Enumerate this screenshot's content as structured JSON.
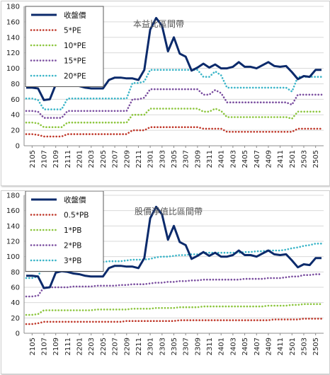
{
  "chart_data": [
    {
      "type": "line",
      "title": "本益比區間帶",
      "ylim": [
        0,
        180
      ],
      "yticks": [
        0,
        20,
        40,
        60,
        80,
        100,
        120,
        140,
        160,
        180
      ],
      "xtick_labels": [
        "2105",
        "2107",
        "2109",
        "2111",
        "2201",
        "2203",
        "2205",
        "2207",
        "2209",
        "2211",
        "2301",
        "2303",
        "2305",
        "2307",
        "2309",
        "2311",
        "2401",
        "2403",
        "2405",
        "2407",
        "2409",
        "2411",
        "2501",
        "2503",
        "2505"
      ],
      "x_start": "2104",
      "grid": "horizontal",
      "legend_position": "top-left",
      "series": [
        {
          "name": "收盤價",
          "color": "#0b2a6b",
          "style": "solid",
          "values": [
            75,
            75,
            74,
            59,
            60,
            79,
            81,
            80,
            78,
            77,
            75,
            74,
            74,
            74,
            85,
            88,
            88,
            87,
            87,
            85,
            98,
            150,
            165,
            155,
            122,
            140,
            119,
            115,
            97,
            101,
            106,
            101,
            105,
            100,
            100,
            102,
            108,
            102,
            102,
            100,
            104,
            108,
            103,
            102,
            103,
            95,
            86,
            90,
            89,
            98,
            98
          ]
        },
        {
          "name": "5*PE",
          "color": "#c0392b",
          "style": "dotted",
          "values": [
            15,
            15,
            14,
            12,
            12,
            12,
            12,
            15,
            15,
            15,
            15,
            15,
            15,
            15,
            15,
            15,
            15,
            15,
            20,
            20,
            20,
            24,
            24,
            24,
            24,
            24,
            24,
            24,
            24,
            24,
            22,
            22,
            22,
            22,
            18,
            18,
            18,
            18,
            18,
            18,
            18,
            18,
            18,
            18,
            18,
            18,
            22,
            22,
            22,
            22,
            22
          ]
        },
        {
          "name": "10*PE",
          "color": "#8dc63f",
          "style": "dotted",
          "values": [
            30,
            30,
            29,
            24,
            24,
            24,
            24,
            30,
            30,
            30,
            30,
            30,
            30,
            30,
            30,
            30,
            30,
            30,
            40,
            40,
            40,
            48,
            48,
            48,
            48,
            48,
            48,
            48,
            48,
            48,
            44,
            44,
            48,
            45,
            37,
            37,
            37,
            37,
            37,
            37,
            37,
            37,
            37,
            37,
            37,
            35,
            44,
            44,
            44,
            44,
            44
          ]
        },
        {
          "name": "15*PE",
          "color": "#7b4fa0",
          "style": "dotted",
          "values": [
            45,
            45,
            44,
            36,
            36,
            36,
            36,
            45,
            45,
            45,
            45,
            45,
            45,
            45,
            45,
            45,
            45,
            45,
            60,
            60,
            62,
            73,
            73,
            73,
            73,
            73,
            73,
            73,
            73,
            73,
            66,
            66,
            72,
            68,
            56,
            56,
            56,
            56,
            56,
            56,
            56,
            56,
            56,
            56,
            56,
            53,
            66,
            66,
            66,
            66,
            66
          ]
        },
        {
          "name": "20*PE",
          "color": "#3bb5c8",
          "style": "dotted",
          "values": [
            61,
            61,
            59,
            47,
            47,
            47,
            47,
            61,
            61,
            61,
            61,
            61,
            61,
            61,
            61,
            61,
            61,
            61,
            81,
            81,
            83,
            98,
            98,
            98,
            98,
            98,
            98,
            98,
            98,
            98,
            89,
            89,
            96,
            91,
            75,
            75,
            75,
            75,
            75,
            75,
            75,
            75,
            75,
            75,
            75,
            70,
            89,
            89,
            89,
            89,
            89
          ]
        }
      ]
    },
    {
      "type": "line",
      "title": "股價淨值比區間帶",
      "ylim": [
        0,
        180
      ],
      "yticks": [
        0,
        20,
        40,
        60,
        80,
        100,
        120,
        140,
        160,
        180
      ],
      "xtick_labels": [
        "2105",
        "2107",
        "2109",
        "2111",
        "2201",
        "2203",
        "2205",
        "2207",
        "2209",
        "2211",
        "2301",
        "2303",
        "2305",
        "2307",
        "2309",
        "2311",
        "2401",
        "2403",
        "2405",
        "2407",
        "2409",
        "2411",
        "2501",
        "2503",
        "2505"
      ],
      "x_start": "2104",
      "grid": "horizontal",
      "legend_position": "top-left",
      "series": [
        {
          "name": "收盤價",
          "color": "#0b2a6b",
          "style": "solid",
          "values": [
            75,
            75,
            74,
            59,
            60,
            79,
            81,
            80,
            78,
            77,
            75,
            74,
            74,
            74,
            85,
            88,
            88,
            87,
            87,
            85,
            98,
            150,
            165,
            155,
            122,
            140,
            119,
            115,
            97,
            101,
            106,
            101,
            105,
            100,
            100,
            102,
            108,
            102,
            102,
            100,
            104,
            108,
            103,
            102,
            103,
            95,
            86,
            90,
            89,
            98,
            98
          ]
        },
        {
          "name": "0.5*PB",
          "color": "#c0392b",
          "style": "dotted",
          "values": [
            12,
            12,
            13,
            15,
            15,
            15,
            15,
            15,
            15,
            15,
            15,
            15,
            15,
            15,
            15,
            15,
            15,
            16,
            16,
            16,
            16,
            16,
            16,
            16,
            16,
            16,
            17,
            17,
            17,
            17,
            17,
            17,
            17,
            17,
            17,
            17,
            17,
            17,
            17,
            17,
            17,
            17,
            18,
            18,
            18,
            18,
            18,
            19,
            19,
            19,
            19
          ]
        },
        {
          "name": "1*PB",
          "color": "#8dc63f",
          "style": "dotted",
          "values": [
            24,
            24,
            25,
            30,
            30,
            30,
            30,
            30,
            30,
            30,
            30,
            30,
            31,
            31,
            31,
            31,
            31,
            31,
            32,
            32,
            32,
            32,
            33,
            33,
            33,
            33,
            34,
            34,
            34,
            34,
            35,
            35,
            35,
            35,
            35,
            35,
            35,
            35,
            35,
            35,
            35,
            36,
            36,
            36,
            36,
            37,
            37,
            38,
            38,
            38,
            38
          ]
        },
        {
          "name": "2*PB",
          "color": "#7b4fa0",
          "style": "dotted",
          "values": [
            48,
            48,
            49,
            60,
            60,
            60,
            60,
            60,
            61,
            61,
            61,
            61,
            62,
            62,
            62,
            62,
            63,
            63,
            64,
            64,
            64,
            65,
            66,
            66,
            67,
            67,
            68,
            68,
            69,
            69,
            70,
            70,
            70,
            70,
            70,
            70,
            70,
            71,
            71,
            71,
            71,
            72,
            72,
            72,
            73,
            74,
            74,
            76,
            76,
            77,
            77
          ]
        },
        {
          "name": "3*PB",
          "color": "#3bb5c8",
          "style": "dotted",
          "values": [
            72,
            72,
            74,
            90,
            90,
            90,
            90,
            90,
            91,
            92,
            93,
            93,
            93,
            93,
            94,
            94,
            94,
            95,
            96,
            96,
            96,
            97,
            99,
            100,
            100,
            101,
            102,
            102,
            103,
            103,
            105,
            105,
            105,
            105,
            105,
            105,
            105,
            106,
            106,
            107,
            107,
            108,
            108,
            108,
            109,
            111,
            112,
            114,
            115,
            117,
            117
          ]
        }
      ]
    }
  ]
}
